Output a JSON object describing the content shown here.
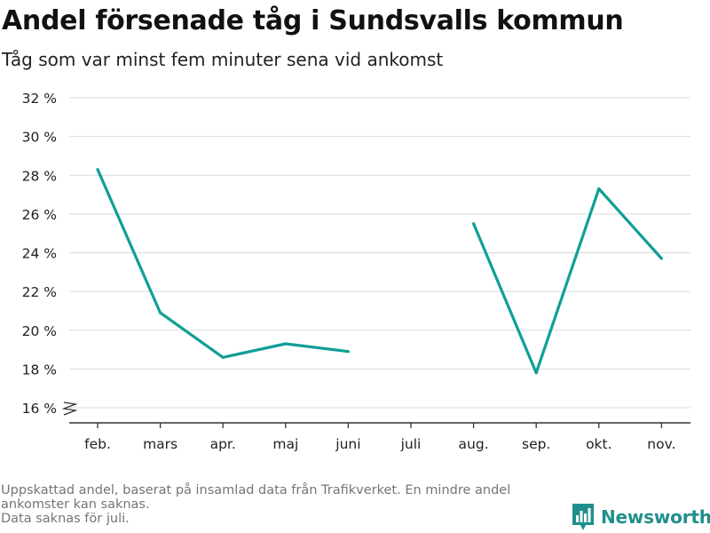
{
  "header": {
    "title": "Andel försenade tåg i Sundsvalls kommun",
    "subtitle": "Tåg som var minst fem minuter sena vid ankomst"
  },
  "footnote": {
    "line1": "Uppskattad andel, baserat på insamlad data från Trafikverket. En mindre andel",
    "line2": "ankomster kan saknas.",
    "line3": "Data saknas för juli."
  },
  "brand": {
    "name": "Newsworthy",
    "icon": "bar-chart-logo-icon",
    "color": "#1f8f8c"
  },
  "colors": {
    "line": "#0f9f96",
    "grid": "#d9d9d9",
    "axis": "#333333"
  },
  "chart_data": {
    "type": "line",
    "categories": [
      "feb.",
      "mars",
      "apr.",
      "maj",
      "juni",
      "juli",
      "aug.",
      "sep.",
      "okt.",
      "nov."
    ],
    "series": [
      {
        "values": [
          28.3,
          20.9,
          18.6,
          19.3,
          18.9,
          null,
          25.5,
          17.8,
          27.3,
          23.7
        ]
      }
    ],
    "ylim": [
      16,
      32
    ],
    "yticks": [
      16,
      18,
      20,
      22,
      24,
      26,
      28,
      30,
      32
    ],
    "ytick_labels": [
      "16 %",
      "18 %",
      "20 %",
      "22 %",
      "24 %",
      "26 %",
      "28 %",
      "30 %",
      "32 %"
    ],
    "axis_break": true,
    "grid": true,
    "xlabel": "",
    "ylabel": ""
  }
}
